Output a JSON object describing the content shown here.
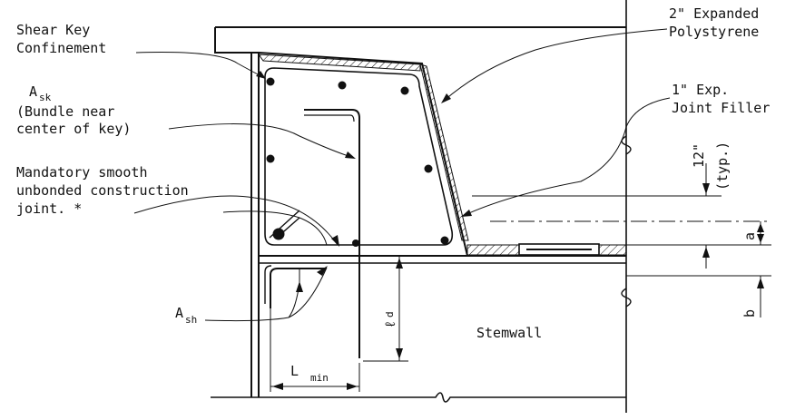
{
  "labels": {
    "shear_key_line1": "Shear Key",
    "shear_key_line2": "Confinement",
    "ask_main": "A",
    "ask_sub": "sk",
    "ask_line2": "(Bundle near",
    "ask_line3": "center of key)",
    "mandatory_line1": "Mandatory smooth",
    "mandatory_line2": "unbonded construction",
    "mandatory_line3": "joint. *",
    "ash_main": "A",
    "ash_sub": "sh",
    "eps_line1": "2\" Expanded",
    "eps_line2": "Polystyrene",
    "filler_line1": "1\" Exp.",
    "filler_line2": "Joint Filler",
    "dim_12": "12\"",
    "dim_typ": "(typ.)",
    "dim_a": "a",
    "dim_b": "b",
    "dim_ld_main": "ℓ",
    "dim_ld_sub": "d",
    "dim_lmin_main": "L",
    "dim_lmin_sub": "min",
    "stemwall": "Stemwall"
  },
  "colors": {
    "line": "#111111",
    "background": "#ffffff"
  }
}
